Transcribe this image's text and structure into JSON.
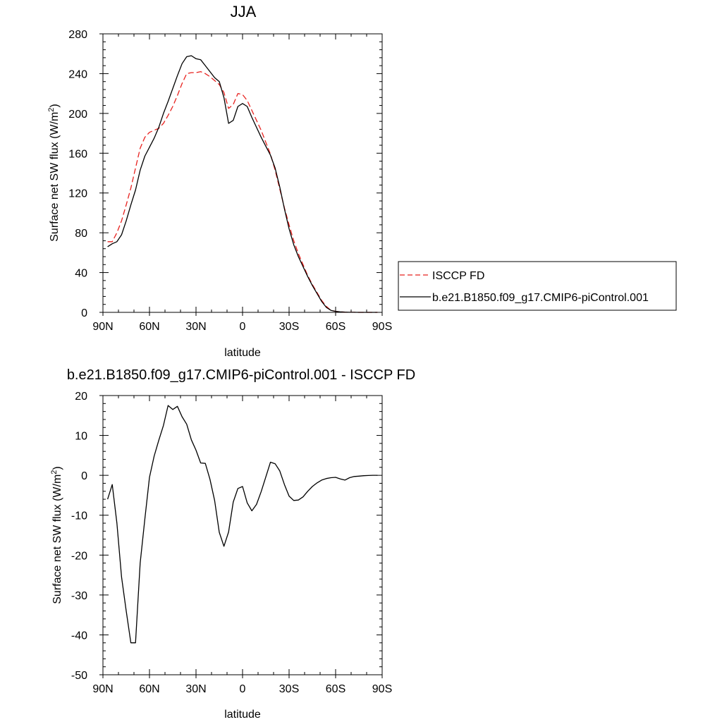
{
  "chart_data": [
    {
      "type": "line",
      "title": "JJA",
      "xlabel": "latitude",
      "ylabel_main": "Surface net SW flux (W/m",
      "ylabel_sup": "2",
      "ylabel_tail": ")",
      "xlim": [
        90,
        -90
      ],
      "ylim": [
        0,
        280
      ],
      "x_ticks": [
        90,
        60,
        30,
        0,
        -30,
        -60,
        -90
      ],
      "x_tick_labels": [
        "90N",
        "60N",
        "30N",
        "0",
        "30S",
        "60S",
        "90S"
      ],
      "y_ticks": [
        0,
        40,
        80,
        120,
        160,
        200,
        240,
        280
      ],
      "y_tick_labels": [
        "0",
        "40",
        "80",
        "120",
        "160",
        "200",
        "240",
        "280"
      ],
      "grid": false,
      "legend": "right",
      "series": [
        {
          "name": "ISCCP FD",
          "color": "#e8211e",
          "dash": "dashed",
          "x": [
            87,
            84,
            81,
            78,
            75,
            72,
            69,
            66,
            63,
            60,
            57,
            54,
            51,
            48,
            45,
            42,
            39,
            36,
            33,
            30,
            27,
            24,
            21,
            18,
            15,
            12,
            9,
            6,
            3,
            0,
            -3,
            -6,
            -9,
            -12,
            -15,
            -18,
            -21,
            -24,
            -27,
            -30,
            -33,
            -36,
            -39,
            -42,
            -45,
            -48,
            -51,
            -54,
            -57,
            -60,
            -63,
            -66,
            -69,
            -72,
            -75,
            -78,
            -81,
            -84,
            -87
          ],
          "y": [
            71,
            71,
            80,
            92,
            108,
            125,
            145,
            165,
            176,
            181,
            183,
            185,
            190,
            198,
            207,
            218,
            230,
            240,
            241,
            241,
            242,
            240,
            237,
            233,
            229,
            221,
            205,
            209,
            220,
            219,
            213,
            203,
            193,
            183,
            171,
            159,
            143,
            124,
            105,
            88,
            72,
            59,
            48,
            37,
            28,
            20,
            12,
            6,
            2,
            1,
            0.5,
            0.2,
            0.1,
            0.05,
            0,
            0,
            0,
            0,
            0
          ]
        },
        {
          "name": "b.e21.B1850.f09_g17.CMIP6-piControl.001",
          "color": "#000000",
          "dash": "solid",
          "x": [
            87,
            84,
            81,
            78,
            75,
            72,
            69,
            66,
            63,
            60,
            57,
            54,
            51,
            48,
            45,
            42,
            39,
            36,
            33,
            30,
            27,
            24,
            21,
            18,
            15,
            12,
            9,
            6,
            3,
            0,
            -3,
            -6,
            -9,
            -12,
            -15,
            -18,
            -21,
            -24,
            -27,
            -30,
            -33,
            -36,
            -39,
            -42,
            -45,
            -48,
            -51,
            -54,
            -57,
            -60,
            -63,
            -66,
            -69,
            -72,
            -75,
            -78,
            -81,
            -84,
            -87
          ],
          "y": [
            66,
            69,
            71,
            78,
            92,
            108,
            123,
            143,
            157,
            166,
            175,
            186,
            200,
            212,
            225,
            238,
            250,
            257,
            258,
            255,
            254,
            248,
            242,
            236,
            232,
            216,
            190,
            193,
            207,
            210,
            207,
            196,
            186,
            176,
            167,
            158,
            145,
            126,
            104,
            84,
            68,
            56,
            46,
            36,
            27,
            19,
            11,
            5,
            2,
            1,
            0.5,
            0.2,
            0.1,
            0.05,
            0,
            0,
            0,
            0,
            0
          ]
        }
      ]
    },
    {
      "type": "line",
      "title": "b.e21.B1850.f09_g17.CMIP6-piControl.001 - ISCCP FD",
      "xlabel": "latitude",
      "ylabel_main": "Surface net SW flux (W/m",
      "ylabel_sup": "2",
      "ylabel_tail": ")",
      "xlim": [
        90,
        -90
      ],
      "ylim": [
        -50,
        20
      ],
      "x_ticks": [
        90,
        60,
        30,
        0,
        -30,
        -60,
        -90
      ],
      "x_tick_labels": [
        "90N",
        "60N",
        "30N",
        "0",
        "30S",
        "60S",
        "90S"
      ],
      "y_ticks": [
        -50,
        -40,
        -30,
        -20,
        -10,
        0,
        10,
        20
      ],
      "y_tick_labels": [
        "-50",
        "-40",
        "-30",
        "-20",
        "-10",
        "0",
        "10",
        "20"
      ],
      "grid": false,
      "series": [
        {
          "color": "#000000",
          "dash": "solid",
          "x": [
            87,
            84,
            81,
            78,
            75,
            72,
            69,
            66,
            63,
            60,
            57,
            54,
            51,
            48,
            45,
            42,
            39,
            36,
            33,
            30,
            27,
            24,
            21,
            18,
            15,
            12,
            9,
            6,
            3,
            0,
            -3,
            -6,
            -9,
            -12,
            -15,
            -18,
            -21,
            -24,
            -27,
            -30,
            -33,
            -36,
            -39,
            -42,
            -45,
            -48,
            -51,
            -54,
            -57,
            -60,
            -63,
            -66,
            -69,
            -72,
            -75,
            -78,
            -81,
            -84,
            -87
          ],
          "y": [
            -6,
            -2.3,
            -12,
            -25.5,
            -34,
            -42,
            -42,
            -22,
            -11,
            -0.5,
            4.8,
            8.8,
            12.5,
            17.5,
            16.5,
            17.3,
            14.7,
            12.8,
            8.9,
            6.3,
            3.1,
            3,
            -1,
            -6.3,
            -14.3,
            -17.8,
            -14.2,
            -6.7,
            -3.3,
            -2.8,
            -6.9,
            -8.9,
            -7.3,
            -4.1,
            -0.4,
            3.3,
            2.9,
            1.1,
            -2.3,
            -5.2,
            -6.3,
            -6.2,
            -5.4,
            -4,
            -2.8,
            -1.9,
            -1.2,
            -0.8,
            -0.6,
            -0.5,
            -0.9,
            -1.2,
            -0.6,
            -0.3,
            -0.2,
            -0.1,
            -0.05,
            0,
            0
          ]
        }
      ]
    }
  ]
}
